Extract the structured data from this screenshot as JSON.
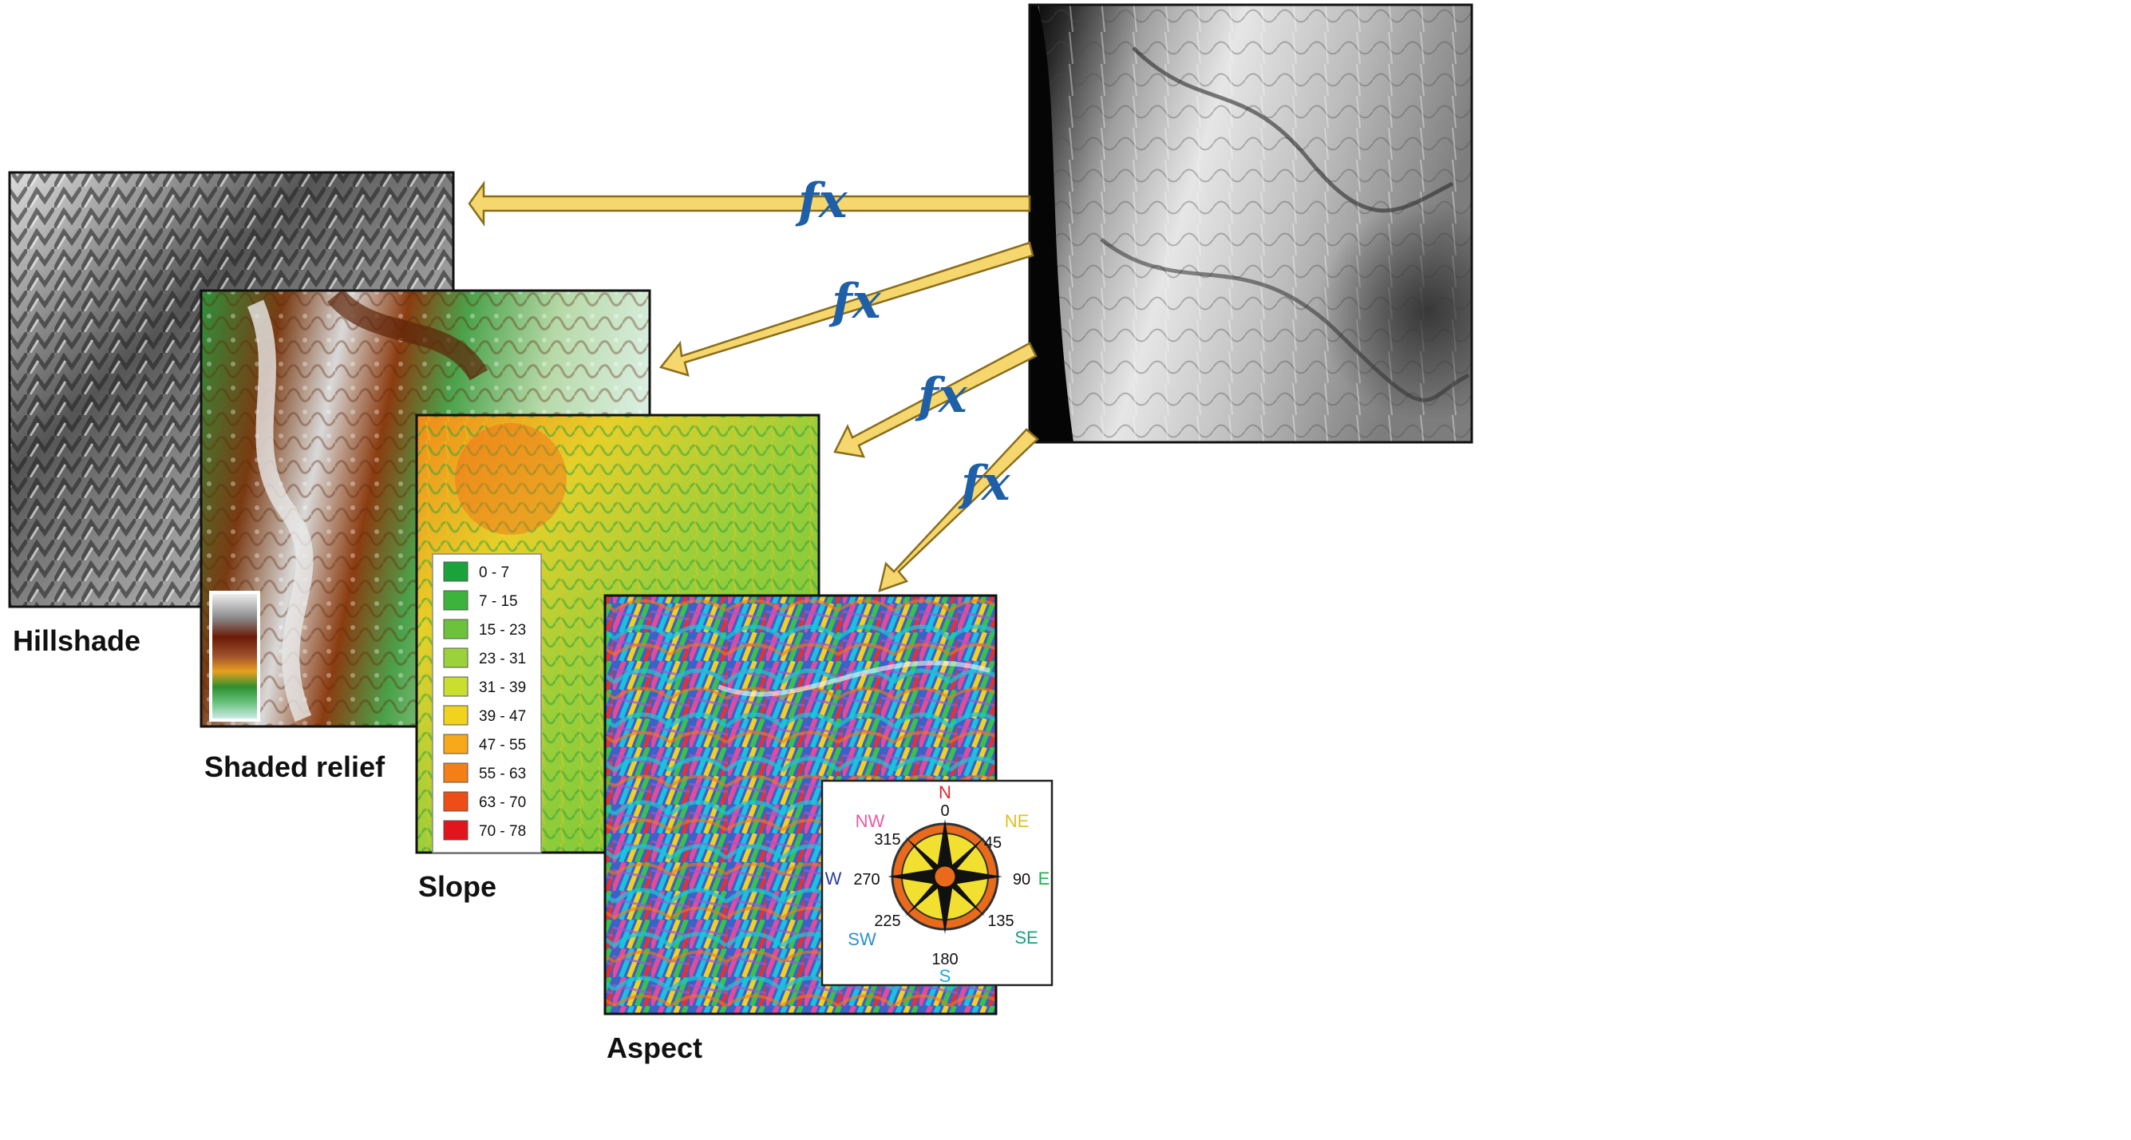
{
  "panels": {
    "hillshade": {
      "caption": "Hillshade"
    },
    "shaded_relief": {
      "caption": "Shaded relief"
    },
    "slope": {
      "caption": "Slope",
      "legend": [
        {
          "label": "0 - 7",
          "color": "#1aa33a"
        },
        {
          "label": "7 - 15",
          "color": "#3cb43c"
        },
        {
          "label": "15 - 23",
          "color": "#6cc23a"
        },
        {
          "label": "23 - 31",
          "color": "#9bd23a"
        },
        {
          "label": "31 - 39",
          "color": "#c9de2e"
        },
        {
          "label": "39 - 47",
          "color": "#f1d21c"
        },
        {
          "label": "47 - 55",
          "color": "#f7a91a"
        },
        {
          "label": "55 - 63",
          "color": "#f57f17"
        },
        {
          "label": "63 - 70",
          "color": "#ee4d17"
        },
        {
          "label": "70 - 78",
          "color": "#e3141b"
        }
      ]
    },
    "aspect": {
      "caption": "Aspect",
      "compass": {
        "directions": [
          {
            "label": "N",
            "color": "#e8242a"
          },
          {
            "label": "NE",
            "color": "#e0c020"
          },
          {
            "label": "E",
            "color": "#22b14c"
          },
          {
            "label": "SE",
            "color": "#18a080"
          },
          {
            "label": "S",
            "color": "#20a8d8"
          },
          {
            "label": "SW",
            "color": "#2a8fd0"
          },
          {
            "label": "W",
            "color": "#283c9a"
          },
          {
            "label": "NW",
            "color": "#e85aa8"
          }
        ],
        "degrees": [
          "0",
          "45",
          "90",
          "135",
          "180",
          "225",
          "270",
          "315"
        ]
      }
    }
  },
  "arrows": [
    {
      "label": "fx"
    },
    {
      "label": "fx"
    },
    {
      "label": "fx"
    },
    {
      "label": "fx"
    }
  ],
  "colors": {
    "arrow_fill": "#f5d76e",
    "arrow_stroke": "#8a6d1c",
    "fx_text": "#1f5fa8"
  }
}
